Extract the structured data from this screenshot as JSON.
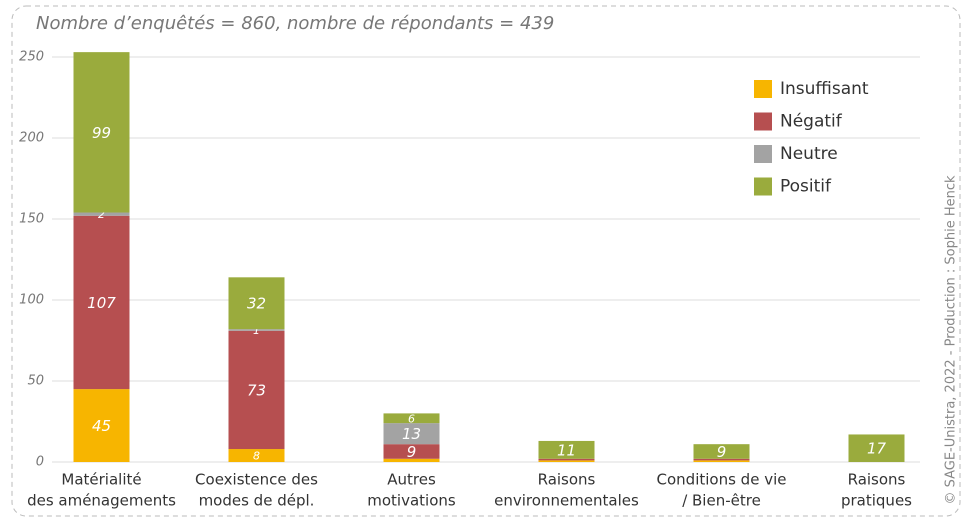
{
  "chart_data": {
    "type": "bar",
    "stacked": true,
    "subtitle": "Nombre d’enquêtés = 860, nombre de répondants = 439",
    "credit": "© SAGE-Unistra, 2022 - Production : Sophie Henck",
    "categories": [
      [
        "Matérialité",
        "des aménagements"
      ],
      [
        "Coexistence des",
        "modes de dépl."
      ],
      [
        "Autres",
        "motivations"
      ],
      [
        "Raisons",
        "environnementales"
      ],
      [
        "Conditions de vie",
        "/ Bien-être"
      ],
      [
        "Raisons",
        "pratiques"
      ]
    ],
    "series": [
      {
        "name": "Insuffisant",
        "color": "#f7b500",
        "values": [
          45,
          8,
          2,
          1,
          1,
          0
        ],
        "value_labels": [
          "45",
          "8",
          null,
          null,
          null,
          null
        ]
      },
      {
        "name": "Négatif",
        "color": "#b64f50",
        "values": [
          107,
          73,
          9,
          1,
          1,
          0
        ],
        "value_labels": [
          "107",
          "73",
          "9",
          null,
          null,
          null
        ]
      },
      {
        "name": "Neutre",
        "color": "#a3a3a3",
        "values": [
          2,
          1,
          13,
          0,
          0,
          0
        ],
        "value_labels": [
          "2",
          "1",
          "13",
          null,
          null,
          null
        ]
      },
      {
        "name": "Positif",
        "color": "#9aab3d",
        "values": [
          99,
          32,
          6,
          11,
          9,
          17
        ],
        "value_labels": [
          "99",
          "32",
          "6",
          "11",
          "9",
          "17"
        ]
      }
    ],
    "ylim": [
      0,
      250
    ],
    "yticks": [
      0,
      50,
      100,
      150,
      200,
      250
    ],
    "grid": true,
    "legend": "upper right"
  }
}
